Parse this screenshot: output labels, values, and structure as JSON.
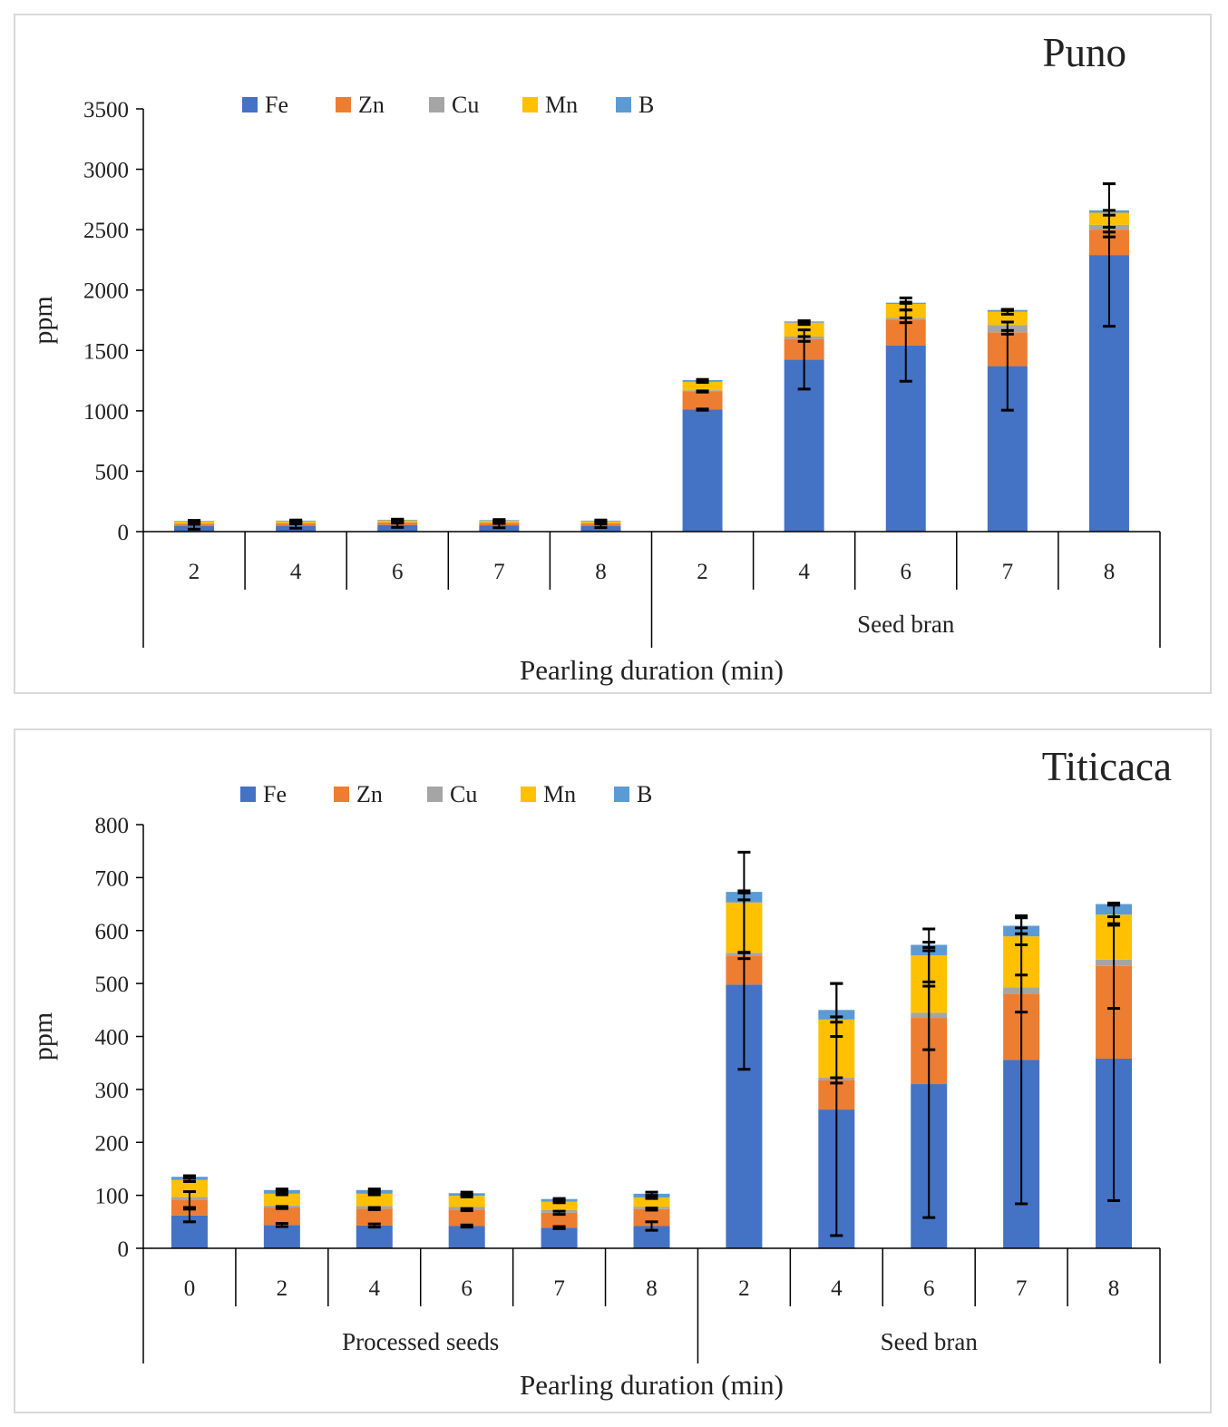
{
  "series_colors": {
    "Fe": "#4472c4",
    "Zn": "#ed7d31",
    "Cu": "#a5a5a5",
    "Mn": "#ffc000",
    "B": "#5b9bd5"
  },
  "error_bar_color": "#000000",
  "chart_data": [
    {
      "type": "bar",
      "stacked": true,
      "title": "Puno",
      "xlabel": "Pearling duration (min)",
      "ylabel": "ppm",
      "ylim": [
        0,
        3500
      ],
      "yticks": [
        0,
        500,
        1000,
        1500,
        2000,
        2500,
        3000,
        3500
      ],
      "legend_position": "top",
      "categories": [
        "2",
        "4",
        "6",
        "7",
        "8",
        "2",
        "4",
        "6",
        "7",
        "8"
      ],
      "groups": [
        {
          "label": "",
          "count": 5
        },
        {
          "label": "Seed bran",
          "count": 5
        }
      ],
      "series": [
        {
          "name": "Fe",
          "values": [
            45,
            48,
            55,
            52,
            48,
            1010,
            1425,
            1540,
            1370,
            2290
          ]
        },
        {
          "name": "Zn",
          "values": [
            20,
            20,
            20,
            20,
            20,
            150,
            170,
            210,
            280,
            210
          ]
        },
        {
          "name": "Cu",
          "values": [
            3,
            3,
            3,
            3,
            3,
            10,
            20,
            20,
            60,
            40
          ]
        },
        {
          "name": "Mn",
          "values": [
            15,
            15,
            15,
            15,
            15,
            70,
            115,
            115,
            110,
            100
          ]
        },
        {
          "name": "B",
          "values": [
            5,
            5,
            5,
            5,
            5,
            15,
            10,
            10,
            15,
            20
          ]
        }
      ],
      "error_bars": [
        {
          "series": "Fe",
          "err": [
            25,
            20,
            20,
            20,
            15,
            5,
            245,
            295,
            365,
            590
          ]
        },
        {
          "series": "Zn",
          "err": [
            5,
            5,
            5,
            5,
            5,
            5,
            20,
            20,
            15,
            20
          ]
        },
        {
          "series": "Mn",
          "err": [
            5,
            5,
            5,
            5,
            5,
            5,
            15,
            50,
            20,
            20
          ]
        },
        {
          "series": "B",
          "err": [
            5,
            5,
            5,
            5,
            5,
            5,
            5,
            5,
            5,
            220
          ]
        }
      ]
    },
    {
      "type": "bar",
      "stacked": true,
      "title": "Titicaca",
      "xlabel": "Pearling duration (min)",
      "ylabel": "ppm",
      "ylim": [
        0,
        800
      ],
      "yticks": [
        0,
        100,
        200,
        300,
        400,
        500,
        600,
        700,
        800
      ],
      "legend_position": "top",
      "categories": [
        "0",
        "2",
        "4",
        "6",
        "7",
        "8",
        "2",
        "4",
        "6",
        "7",
        "8"
      ],
      "groups": [
        {
          "label": "Processed seeds",
          "count": 6
        },
        {
          "label": "Seed bran",
          "count": 5
        }
      ],
      "series": [
        {
          "name": "Fe",
          "values": [
            62,
            44,
            43,
            42,
            39,
            42,
            498,
            262,
            310,
            356,
            358
          ]
        },
        {
          "name": "Zn",
          "values": [
            30,
            33,
            32,
            31,
            28,
            32,
            55,
            55,
            125,
            125,
            175
          ]
        },
        {
          "name": "Cu",
          "values": [
            5,
            4,
            5,
            5,
            5,
            4,
            5,
            5,
            10,
            12,
            12
          ]
        },
        {
          "name": "Mn",
          "values": [
            32,
            22,
            23,
            21,
            16,
            18,
            95,
            110,
            108,
            96,
            85
          ]
        },
        {
          "name": "B",
          "values": [
            6,
            7,
            7,
            5,
            5,
            7,
            20,
            18,
            20,
            20,
            20
          ]
        }
      ],
      "error_bars": [
        {
          "series": "Fe",
          "err": [
            12,
            3,
            3,
            2,
            2,
            8,
            160,
            238,
            252,
            272,
            268
          ]
        },
        {
          "series": "Zn",
          "err": [
            15,
            2,
            2,
            2,
            3,
            2,
            6,
            5,
            60,
            35,
            80
          ]
        },
        {
          "series": "Mn",
          "err": [
            3,
            2,
            2,
            2,
            2,
            2,
            95,
            5,
            50,
            16,
            20
          ]
        },
        {
          "series": "B",
          "err": [
            2,
            2,
            2,
            2,
            1,
            3,
            2,
            50,
            5,
            15,
            2
          ]
        }
      ]
    }
  ]
}
